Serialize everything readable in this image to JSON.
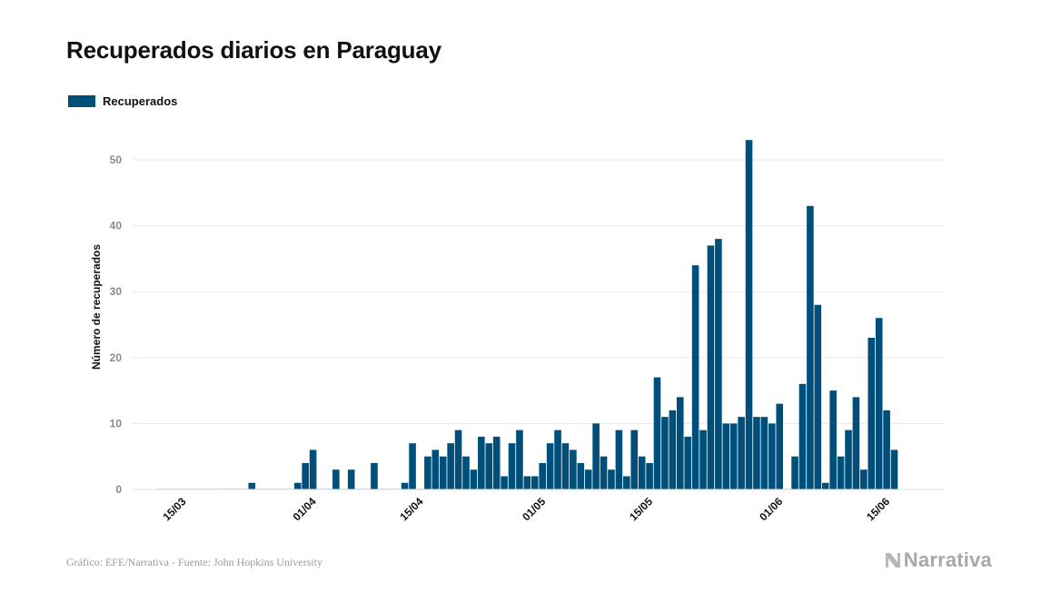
{
  "header": {
    "title": "Recuperados diarios en Paraguay"
  },
  "legend": {
    "label": "Recuperados",
    "color": "#004f7a"
  },
  "footer": {
    "source": "Gráfico: EFE/Narrativa - Fuente: John Hopkins University",
    "brand": "Narrativa"
  },
  "colors": {
    "bar": "#004f7a",
    "grid": "#e9e9e9",
    "tick_text": "#8a8a8a",
    "brand": "#a8a8a8"
  },
  "chart_data": {
    "type": "bar",
    "title": "Recuperados diarios en Paraguay",
    "ylabel": "Número de recuperados",
    "xlabel": "",
    "ylim": [
      0,
      55
    ],
    "yticks": [
      0,
      10,
      20,
      30,
      40,
      50
    ],
    "grid": true,
    "legend_position": "top-left",
    "x_start": "12/03",
    "x_end": "19/06",
    "xtick_labels": [
      "15/03",
      "01/04",
      "15/04",
      "01/05",
      "15/05",
      "01/06",
      "15/06"
    ],
    "xtick_days": [
      "15/03",
      "01/04",
      "15/04",
      "01/05",
      "15/05",
      "01/06",
      "15/06"
    ],
    "series": [
      {
        "name": "Recuperados",
        "values": [
          0,
          0,
          0,
          0,
          0,
          0,
          0,
          0,
          0,
          0,
          0,
          0,
          1,
          0,
          0,
          0,
          0,
          0,
          1,
          4,
          6,
          0,
          0,
          3,
          0,
          3,
          0,
          0,
          4,
          0,
          0,
          0,
          1,
          7,
          0,
          5,
          6,
          5,
          7,
          9,
          5,
          3,
          8,
          7,
          8,
          2,
          7,
          9,
          2,
          2,
          4,
          7,
          9,
          7,
          6,
          4,
          3,
          10,
          5,
          3,
          9,
          2,
          9,
          5,
          4,
          17,
          11,
          12,
          14,
          8,
          34,
          9,
          37,
          38,
          10,
          10,
          11,
          53,
          11,
          11,
          10,
          13,
          0,
          5,
          16,
          43,
          28,
          1,
          15,
          5,
          9,
          14,
          3,
          23,
          26,
          12,
          6
        ]
      }
    ]
  }
}
